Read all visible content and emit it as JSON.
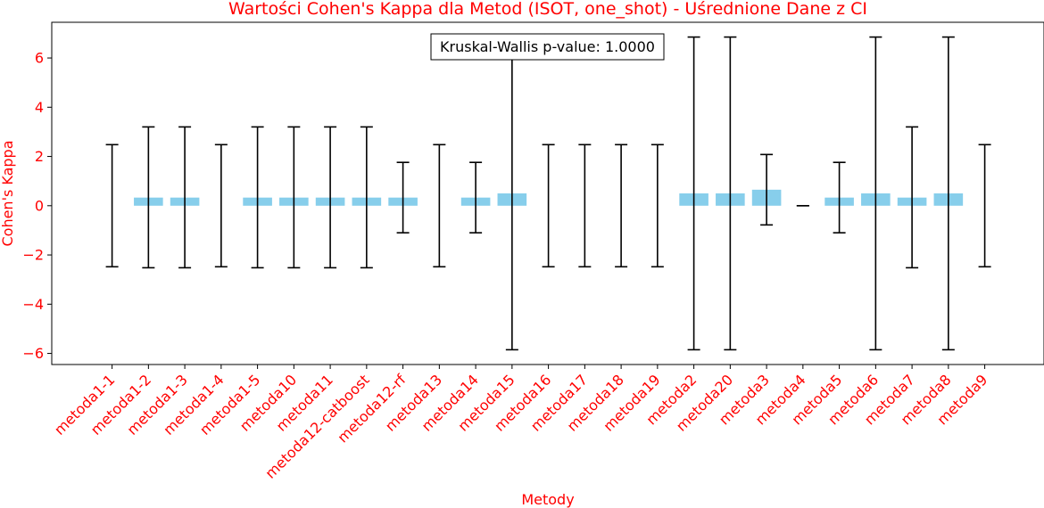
{
  "chart_data": {
    "type": "bar",
    "title": "Wartości Cohen's Kappa dla Metod (ISOT, one_shot) - Uśrednione Dane z CI",
    "xlabel": "Metody",
    "ylabel": "Cohen's Kappa",
    "ylim": [
      -6.45,
      7.45
    ],
    "yticks": [
      -6,
      -4,
      -2,
      0,
      2,
      4,
      6
    ],
    "ytick_labels": [
      "−6",
      "−4",
      "−2",
      "0",
      "2",
      "4",
      "6"
    ],
    "annotation": "Kruskal-Wallis p-value: 1.0000",
    "grid": false,
    "bar_color": "#87ceeb",
    "error_color": "#000000",
    "text_color": "#ff0000",
    "categories": [
      "metoda1-1",
      "metoda1-2",
      "metoda1-3",
      "metoda1-4",
      "metoda1-5",
      "metoda10",
      "metoda11",
      "metoda12-catboost",
      "metoda12-rf",
      "metoda13",
      "metoda14",
      "metoda15",
      "metoda16",
      "metoda17",
      "metoda18",
      "metoda19",
      "metoda2",
      "metoda20",
      "metoda3",
      "metoda4",
      "metoda5",
      "metoda6",
      "metoda7",
      "metoda8",
      "metoda9"
    ],
    "values": [
      0,
      0.33,
      0.33,
      0,
      0.33,
      0.33,
      0.33,
      0.33,
      0.33,
      0,
      0.33,
      0.5,
      0,
      0,
      0,
      0,
      0.5,
      0.5,
      0.65,
      0,
      0.33,
      0.5,
      0.33,
      0.5,
      0
    ],
    "ci_lower": [
      -2.48,
      -2.52,
      -2.52,
      -2.48,
      -2.52,
      -2.52,
      -2.52,
      -2.52,
      -1.1,
      -2.48,
      -1.1,
      -5.85,
      -2.48,
      -2.48,
      -2.48,
      -2.48,
      -5.85,
      -5.85,
      -0.78,
      0,
      -1.1,
      -5.85,
      -2.52,
      -5.85,
      -2.48
    ],
    "ci_upper": [
      2.48,
      3.2,
      3.2,
      2.48,
      3.2,
      3.2,
      3.2,
      3.2,
      1.76,
      2.48,
      1.76,
      6.85,
      2.48,
      2.48,
      2.48,
      2.48,
      6.85,
      6.85,
      2.08,
      0,
      1.76,
      6.85,
      3.2,
      6.85,
      2.48
    ]
  }
}
